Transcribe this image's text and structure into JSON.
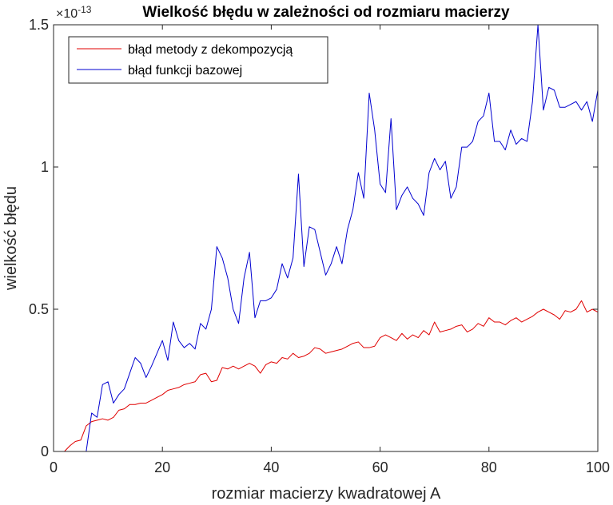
{
  "chart_data": {
    "type": "line",
    "title": "Wielkość błędu w zależności od rozmiaru macierzy",
    "xlabel": "rozmiar macierzy kwadratowej A",
    "ylabel": "wielkość błędu",
    "y_exponent": "×10",
    "y_exponent_power": "-13",
    "xlim": [
      0,
      100
    ],
    "ylim": [
      0,
      1.5
    ],
    "x_ticks": [
      0,
      20,
      40,
      60,
      80,
      100
    ],
    "x_tick_labels": [
      "0",
      "20",
      "40",
      "60",
      "80",
      "100"
    ],
    "y_ticks": [
      0,
      0.5,
      1,
      1.5
    ],
    "y_tick_labels": [
      "0",
      "0.5",
      "1",
      "1.5"
    ],
    "legend_position": "top-left",
    "grid": false,
    "x": [
      1,
      2,
      3,
      4,
      5,
      6,
      7,
      8,
      9,
      10,
      11,
      12,
      13,
      14,
      15,
      16,
      17,
      18,
      19,
      20,
      21,
      22,
      23,
      24,
      25,
      26,
      27,
      28,
      29,
      30,
      31,
      32,
      33,
      34,
      35,
      36,
      37,
      38,
      39,
      40,
      41,
      42,
      43,
      44,
      45,
      46,
      47,
      48,
      49,
      50,
      51,
      52,
      53,
      54,
      55,
      56,
      57,
      58,
      59,
      60,
      61,
      62,
      63,
      64,
      65,
      66,
      67,
      68,
      69,
      70,
      71,
      72,
      73,
      74,
      75,
      76,
      77,
      78,
      79,
      80,
      81,
      82,
      83,
      84,
      85,
      86,
      87,
      88,
      89,
      90,
      91,
      92,
      93,
      94,
      95,
      96,
      97,
      98,
      99,
      100
    ],
    "series": [
      {
        "name": "błąd metody z dekompozycją",
        "color": "#e00000",
        "values": [
          0.0,
          0.0,
          0.02,
          0.035,
          0.04,
          0.09,
          0.105,
          0.11,
          0.115,
          0.11,
          0.12,
          0.145,
          0.15,
          0.165,
          0.165,
          0.17,
          0.17,
          0.18,
          0.19,
          0.2,
          0.215,
          0.22,
          0.225,
          0.235,
          0.24,
          0.245,
          0.27,
          0.275,
          0.245,
          0.25,
          0.295,
          0.29,
          0.3,
          0.29,
          0.3,
          0.31,
          0.3,
          0.275,
          0.305,
          0.315,
          0.31,
          0.33,
          0.325,
          0.345,
          0.33,
          0.335,
          0.345,
          0.365,
          0.36,
          0.345,
          0.35,
          0.355,
          0.36,
          0.37,
          0.38,
          0.385,
          0.365,
          0.365,
          0.37,
          0.4,
          0.41,
          0.4,
          0.39,
          0.415,
          0.395,
          0.41,
          0.4,
          0.425,
          0.41,
          0.455,
          0.42,
          0.425,
          0.43,
          0.44,
          0.445,
          0.42,
          0.43,
          0.45,
          0.44,
          0.47,
          0.455,
          0.455,
          0.445,
          0.46,
          0.47,
          0.455,
          0.465,
          0.475,
          0.49,
          0.5,
          0.49,
          0.48,
          0.465,
          0.495,
          0.49,
          0.5,
          0.53,
          0.49,
          0.5,
          0.49
        ]
      },
      {
        "name": "błąd funkcji bazowej",
        "color": "#0000d0",
        "values": [
          0.0,
          0.0,
          0.0,
          0.0,
          0.0,
          0.0,
          0.135,
          0.12,
          0.235,
          0.245,
          0.17,
          0.2,
          0.22,
          0.275,
          0.33,
          0.31,
          0.26,
          0.3,
          0.345,
          0.39,
          0.32,
          0.455,
          0.39,
          0.365,
          0.38,
          0.36,
          0.45,
          0.43,
          0.5,
          0.72,
          0.68,
          0.61,
          0.5,
          0.45,
          0.61,
          0.7,
          0.47,
          0.53,
          0.53,
          0.54,
          0.57,
          0.66,
          0.61,
          0.68,
          0.975,
          0.65,
          0.79,
          0.78,
          0.7,
          0.62,
          0.66,
          0.72,
          0.66,
          0.78,
          0.85,
          0.98,
          0.89,
          1.26,
          1.13,
          0.94,
          0.91,
          1.17,
          0.85,
          0.9,
          0.93,
          0.89,
          0.87,
          0.83,
          0.98,
          1.03,
          0.99,
          1.02,
          0.89,
          0.93,
          1.07,
          1.07,
          1.09,
          1.16,
          1.18,
          1.26,
          1.09,
          1.09,
          1.06,
          1.13,
          1.08,
          1.1,
          1.09,
          1.23,
          1.5,
          1.2,
          1.28,
          1.27,
          1.21,
          1.21,
          1.22,
          1.23,
          1.2,
          1.23,
          1.16,
          1.27
        ]
      }
    ]
  }
}
